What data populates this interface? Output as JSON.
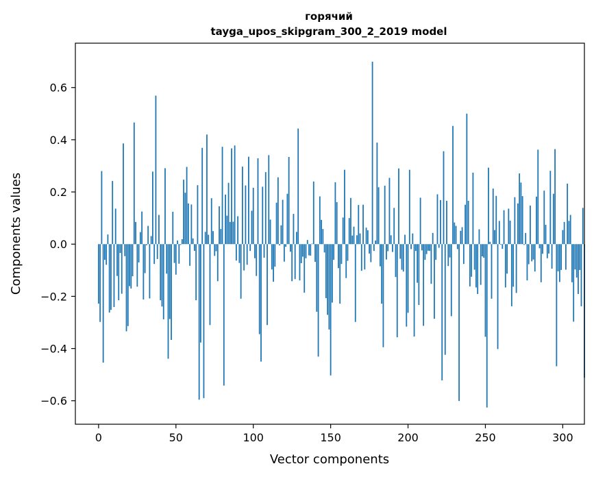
{
  "chart_data": {
    "type": "bar",
    "title": "горячий",
    "subtitle": "tayga_upos_skipgram_300_2_2019 model",
    "xlabel": "Vector components",
    "ylabel": "Components values",
    "xlim": [
      -15,
      314
    ],
    "ylim": [
      -0.69,
      0.77
    ],
    "xticks": [
      0,
      50,
      100,
      150,
      200,
      250,
      300
    ],
    "yticks": [
      -0.6,
      -0.4,
      -0.2,
      0.0,
      0.2,
      0.4,
      0.6
    ],
    "xtick_labels": [
      "0",
      "50",
      "100",
      "150",
      "200",
      "250",
      "300"
    ],
    "ytick_labels": [
      "−0.6",
      "−0.4",
      "−0.2",
      "0.0",
      "0.2",
      "0.4",
      "0.6"
    ],
    "grid": false,
    "bar_color": "#1f77b4",
    "values": [
      -0.228,
      -0.298,
      0.28,
      -0.454,
      -0.06,
      -0.079,
      0.037,
      -0.262,
      -0.252,
      0.242,
      -0.241,
      0.136,
      -0.122,
      -0.215,
      -0.034,
      -0.19,
      0.386,
      -0.046,
      -0.334,
      -0.314,
      -0.161,
      -0.17,
      -0.123,
      0.466,
      0.085,
      -0.163,
      -0.07,
      0.046,
      0.125,
      -0.212,
      -0.111,
      -0.004,
      0.07,
      -0.208,
      0.031,
      0.278,
      -0.076,
      0.569,
      -0.057,
      0.112,
      -0.215,
      -0.239,
      -0.288,
      0.291,
      -0.113,
      -0.439,
      -0.287,
      -0.367,
      0.124,
      -0.072,
      -0.117,
      0.014,
      -0.075,
      -0.003,
      0.019,
      0.247,
      0.197,
      0.296,
      0.156,
      -0.083,
      0.152,
      0.022,
      -0.026,
      -0.215,
      0.226,
      -0.596,
      -0.377,
      0.369,
      -0.59,
      0.047,
      0.42,
      0.036,
      -0.31,
      0.176,
      0.05,
      -0.045,
      -0.027,
      -0.142,
      0.145,
      0.058,
      0.373,
      -0.542,
      0.19,
      0.109,
      0.235,
      0.085,
      0.367,
      0.086,
      0.378,
      -0.063,
      0.107,
      -0.072,
      -0.209,
      0.297,
      -0.101,
      0.225,
      -0.079,
      0.335,
      -0.026,
      0.128,
      0.216,
      -0.054,
      -0.122,
      0.329,
      -0.345,
      -0.45,
      0.22,
      -0.052,
      0.276,
      -0.31,
      0.341,
      0.094,
      -0.097,
      -0.144,
      -0.086,
      0.159,
      0.256,
      -0.005,
      0.072,
      0.17,
      -0.067,
      -0.01,
      0.193,
      0.334,
      -0.029,
      -0.142,
      0.116,
      -0.134,
      0.047,
      0.443,
      -0.139,
      -0.073,
      -0.048,
      -0.186,
      -0.054,
      0.016,
      -0.043,
      -0.044,
      0.002,
      0.24,
      -0.068,
      -0.259,
      -0.431,
      0.183,
      0.093,
      0.058,
      -0.032,
      -0.207,
      -0.271,
      -0.327,
      -0.503,
      -0.224,
      -0.06,
      0.237,
      0.161,
      -0.092,
      -0.228,
      -0.076,
      0.102,
      0.285,
      -0.13,
      -0.064,
      0.1,
      0.177,
      0.033,
      0.067,
      -0.298,
      0.034,
      0.15,
      0.041,
      -0.102,
      0.151,
      -0.097,
      0.063,
      0.053,
      -0.036,
      -0.069,
      0.699,
      -0.026,
      0.014,
      0.389,
      0.218,
      -0.085,
      -0.228,
      -0.395,
      0.224,
      -0.059,
      -0.027,
      0.254,
      0.034,
      -0.03,
      0.139,
      -0.126,
      -0.357,
      0.29,
      -0.056,
      -0.098,
      -0.105,
      0.036,
      -0.316,
      -0.263,
      0.285,
      -0.019,
      0.041,
      -0.354,
      -0.026,
      -0.148,
      -0.233,
      0.178,
      -0.024,
      -0.313,
      -0.06,
      -0.038,
      -0.025,
      -0.026,
      -0.152,
      0.043,
      -0.286,
      -0.06,
      0.191,
      -0.014,
      0.169,
      -0.522,
      0.356,
      -0.424,
      0.166,
      -0.084,
      -0.051,
      -0.276,
      0.453,
      0.083,
      0.07,
      -0.019,
      -0.601,
      0.051,
      0.065,
      -0.076,
      0.151,
      0.5,
      0.166,
      -0.162,
      -0.125,
      0.274,
      -0.098,
      -0.166,
      -0.191,
      0.057,
      -0.156,
      -0.047,
      -0.052,
      -0.355,
      -0.626,
      0.293,
      0.009,
      -0.209,
      0.213,
      0.054,
      0.185,
      -0.402,
      0.089,
      -0.002,
      -0.018,
      0.13,
      -0.166,
      -0.113,
      0.136,
      0.09,
      -0.238,
      -0.163,
      0.18,
      -0.187,
      0.156,
      0.271,
      0.236,
      0.184,
      -0.003,
      0.043,
      -0.139,
      -0.077,
      0.148,
      -0.066,
      -0.059,
      -0.105,
      0.182,
      0.362,
      -0.016,
      -0.146,
      -0.037,
      0.205,
      0.074,
      -0.054,
      -0.036,
      0.281,
      -0.094,
      0.193,
      0.364,
      -0.468,
      -0.104,
      -0.145,
      -0.099,
      0.054,
      0.085,
      -0.098,
      0.232,
      0.089,
      0.112,
      -0.146,
      -0.297,
      -0.097,
      -0.128,
      -0.191,
      -0.099,
      -0.238,
      0.139,
      -0.512
    ]
  }
}
